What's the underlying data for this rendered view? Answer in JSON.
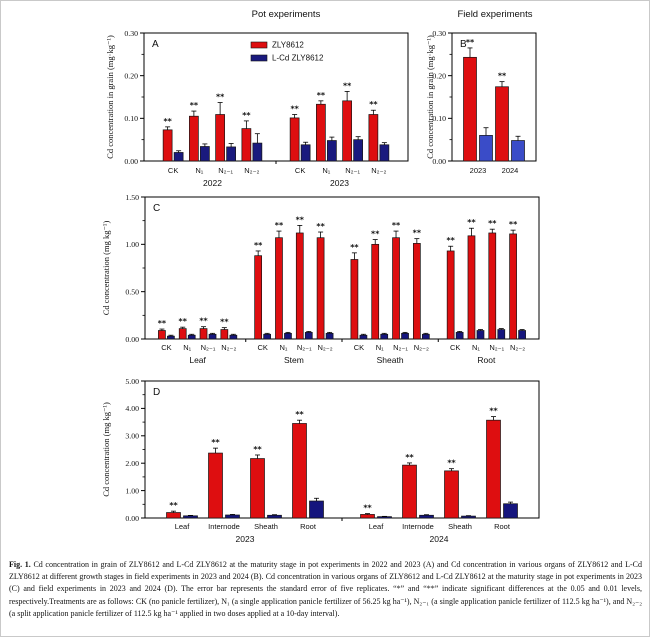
{
  "figure": {
    "caption_label": "Fig. 1.",
    "caption_text": " Cd concentration in grain of ZLY8612 and L-Cd ZLY8612 at the maturity stage in pot experiments in 2022 and 2023 (A) and Cd concentration in various organs of ZLY8612 and L-Cd ZLY8612 at different growth stages in field experiments in 2023 and 2024 (B). Cd concentration in various organs of ZLY8612 and L-Cd ZLY8612 at the maturity stage in pot experiments in 2023 (C) and field experiments in 2023 and 2024 (D). The error bar represents the standard error of five replicates. “*” and “**” indicate significant differences at the 0.05 and 0.01 levels, respectively.Treatments are as follows: CK (no panicle fertilizer), N₁ (a single application panicle fertilizer of 56.25 kg ha⁻¹), N₂₋₁ (a single application panicle fertilizer of 112.5 kg ha⁻¹), and N₂₋₂ (a split application panicle fertilizer of 112.5 kg ha⁻¹ applied in two doses applied at a 10-day interval)."
  },
  "chart_data": [
    {
      "id": "A",
      "panel_label": "A",
      "type": "bar",
      "title": "Pot experiments",
      "ylabel": "Cd concentration in grain (mg·kg⁻¹)",
      "ylim": [
        0,
        0.3
      ],
      "yticks": [
        0,
        0.1,
        0.2,
        0.3
      ],
      "groups": [
        {
          "label": "2022",
          "categories": [
            "CK",
            "N₁",
            "N₂₋₁",
            "N₂₋₂"
          ]
        },
        {
          "label": "2023",
          "categories": [
            "CK",
            "N₁",
            "N₂₋₁",
            "N₂₋₂"
          ]
        }
      ],
      "legend": {
        "show": true
      },
      "series": [
        {
          "name": "ZLY8612",
          "color": "#DE0E10",
          "values": [
            0.073,
            0.105,
            0.109,
            0.076,
            0.101,
            0.133,
            0.141,
            0.109
          ],
          "errors": [
            0.007,
            0.012,
            0.028,
            0.018,
            0.008,
            0.008,
            0.022,
            0.01
          ],
          "sig": [
            "**",
            "**",
            "**",
            "**",
            "**",
            "**",
            "**",
            "**"
          ]
        },
        {
          "name": "L-Cd ZLY8612",
          "color": "#1A1A7E",
          "values": [
            0.02,
            0.034,
            0.033,
            0.042,
            0.038,
            0.048,
            0.05,
            0.038
          ],
          "errors": [
            0.004,
            0.006,
            0.008,
            0.022,
            0.006,
            0.008,
            0.007,
            0.005
          ],
          "sig": []
        }
      ]
    },
    {
      "id": "B",
      "panel_label": "B",
      "type": "bar",
      "title": "Field experiments",
      "ylabel": "Cd concentration in grain (mg·kg⁻¹)",
      "ylim": [
        0,
        0.3
      ],
      "yticks": [
        0,
        0.1,
        0.2,
        0.3
      ],
      "groups": [
        {
          "label": null,
          "categories": [
            "2023",
            "2024"
          ]
        }
      ],
      "legend": {
        "show": false
      },
      "series": [
        {
          "name": "ZLY8612",
          "color": "#DE0E10",
          "values": [
            0.243,
            0.174
          ],
          "errors": [
            0.022,
            0.012
          ],
          "sig": [
            "**",
            "**"
          ]
        },
        {
          "name": "L-Cd ZLY8612",
          "color": "#3A4CC8",
          "values": [
            0.06,
            0.048
          ],
          "errors": [
            0.018,
            0.01
          ],
          "sig": []
        }
      ]
    },
    {
      "id": "C",
      "panel_label": "C",
      "type": "bar",
      "title": "",
      "ylabel": "Cd concentration (mg kg⁻¹)",
      "ylim": [
        0,
        1.5
      ],
      "yticks": [
        0,
        0.5,
        1.0,
        1.5
      ],
      "groups": [
        {
          "label": "Leaf",
          "categories": [
            "CK",
            "N₁",
            "N₂₋₁",
            "N₂₋₂"
          ]
        },
        {
          "label": "Stem",
          "categories": [
            "CK",
            "N₁",
            "N₂₋₁",
            "N₂₋₂"
          ]
        },
        {
          "label": "Sheath",
          "categories": [
            "CK",
            "N₁",
            "N₂₋₁",
            "N₂₋₂"
          ]
        },
        {
          "label": "Root",
          "categories": [
            "CK",
            "N₁",
            "N₂₋₁",
            "N₂₋₂"
          ]
        }
      ],
      "legend": {
        "show": false
      },
      "series": [
        {
          "name": "ZLY8612",
          "color": "#DE0E10",
          "values": [
            0.09,
            0.11,
            0.11,
            0.1,
            0.88,
            1.07,
            1.12,
            1.07,
            0.84,
            1.0,
            1.07,
            1.01,
            0.93,
            1.09,
            1.12,
            1.11
          ],
          "errors": [
            0.015,
            0.015,
            0.02,
            0.02,
            0.05,
            0.07,
            0.08,
            0.06,
            0.07,
            0.05,
            0.07,
            0.05,
            0.05,
            0.08,
            0.04,
            0.04
          ],
          "sig": [
            "**",
            "**",
            "**",
            "**",
            "**",
            "**",
            "**",
            "**",
            "**",
            "**",
            "**",
            "**",
            "**",
            "**",
            "**",
            "**"
          ]
        },
        {
          "name": "L-Cd ZLY8612",
          "color": "#15157D",
          "values": [
            0.03,
            0.04,
            0.05,
            0.04,
            0.05,
            0.06,
            0.07,
            0.06,
            0.04,
            0.05,
            0.06,
            0.05,
            0.07,
            0.09,
            0.1,
            0.09
          ],
          "errors": [
            0.01,
            0.01,
            0.01,
            0.01,
            0.01,
            0.01,
            0.01,
            0.01,
            0.01,
            0.01,
            0.01,
            0.01,
            0.01,
            0.01,
            0.01,
            0.01
          ],
          "sig": []
        }
      ]
    },
    {
      "id": "D",
      "panel_label": "D",
      "type": "bar",
      "title": "",
      "ylabel": "Cd concentration (mg kg⁻¹)",
      "ylim": [
        0,
        5.0
      ],
      "yticks": [
        0,
        1.0,
        2.0,
        3.0,
        4.0,
        5.0
      ],
      "groups": [
        {
          "label": "2023",
          "categories": [
            "Leaf",
            "Internode",
            "Sheath",
            "Root"
          ]
        },
        {
          "label": "2024",
          "categories": [
            "Leaf",
            "Internode",
            "Sheath",
            "Root"
          ]
        }
      ],
      "legend": {
        "show": false
      },
      "series": [
        {
          "name": "ZLY8612",
          "color": "#DE0E10",
          "values": [
            0.2,
            2.37,
            2.17,
            3.45,
            0.13,
            1.93,
            1.72,
            3.57
          ],
          "errors": [
            0.05,
            0.18,
            0.13,
            0.12,
            0.03,
            0.08,
            0.08,
            0.13
          ],
          "sig": [
            "**",
            "**",
            "**",
            "**",
            "**",
            "**",
            "**",
            "**"
          ]
        },
        {
          "name": "L-Cd ZLY8612",
          "color": "#15157D",
          "values": [
            0.08,
            0.11,
            0.1,
            0.62,
            0.05,
            0.1,
            0.07,
            0.52
          ],
          "errors": [
            0.015,
            0.02,
            0.02,
            0.1,
            0.01,
            0.02,
            0.015,
            0.06
          ],
          "sig": []
        }
      ]
    }
  ]
}
